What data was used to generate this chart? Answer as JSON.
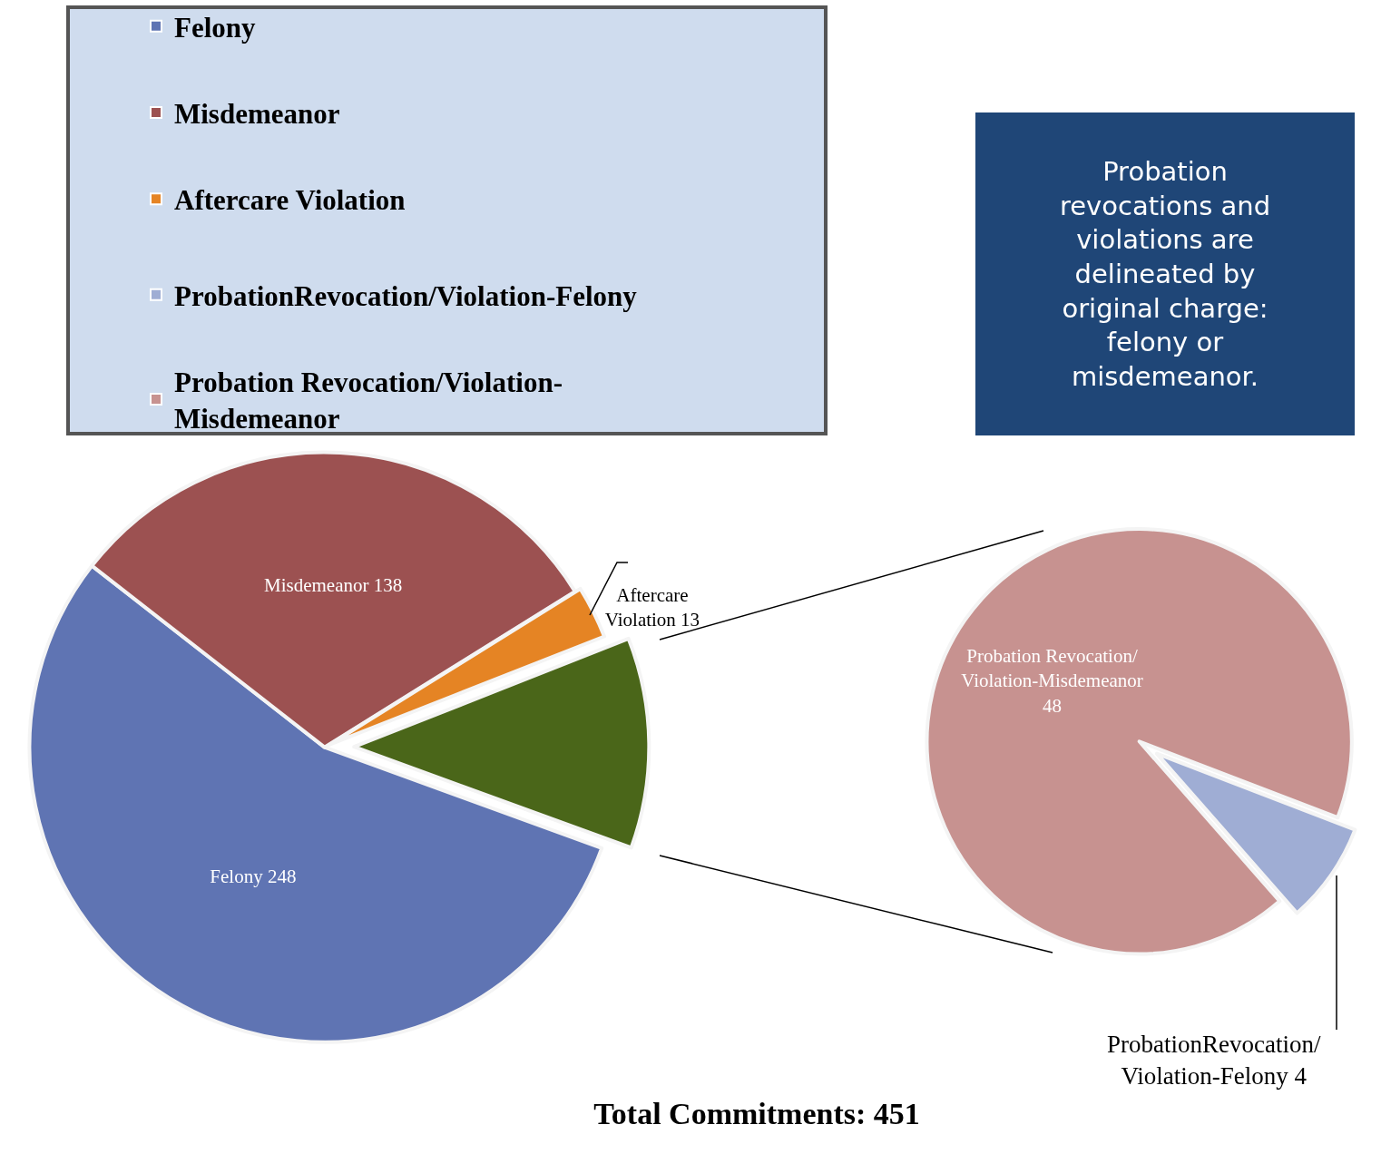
{
  "chart_data": [
    {
      "type": "pie",
      "title": "Total Commitments: 451",
      "categories": [
        "Felony",
        "Misdemeanor",
        "Aftercare Violation",
        null
      ],
      "values": [
        248,
        138,
        13,
        52
      ],
      "colors": [
        "#5f74b3",
        "#9c5151",
        "#e58424",
        "#4a6619"
      ],
      "value_labels": [
        "248",
        "138",
        "13",
        null
      ],
      "legend": "top left"
    },
    {
      "type": "pie",
      "categories": [
        "ProbationRevocation/Violation-Felony",
        "Probation Revocation/Violation-Misdemeanor"
      ],
      "values": [
        4,
        48
      ],
      "colors": [
        "#9fadd4",
        "#c79290"
      ],
      "value_labels": [
        "4",
        "48"
      ],
      "legend": "top left",
      "annotations": [
        "Probation revocations and violations are delineated by original charge: felony or misdemeanor."
      ]
    }
  ]
}
